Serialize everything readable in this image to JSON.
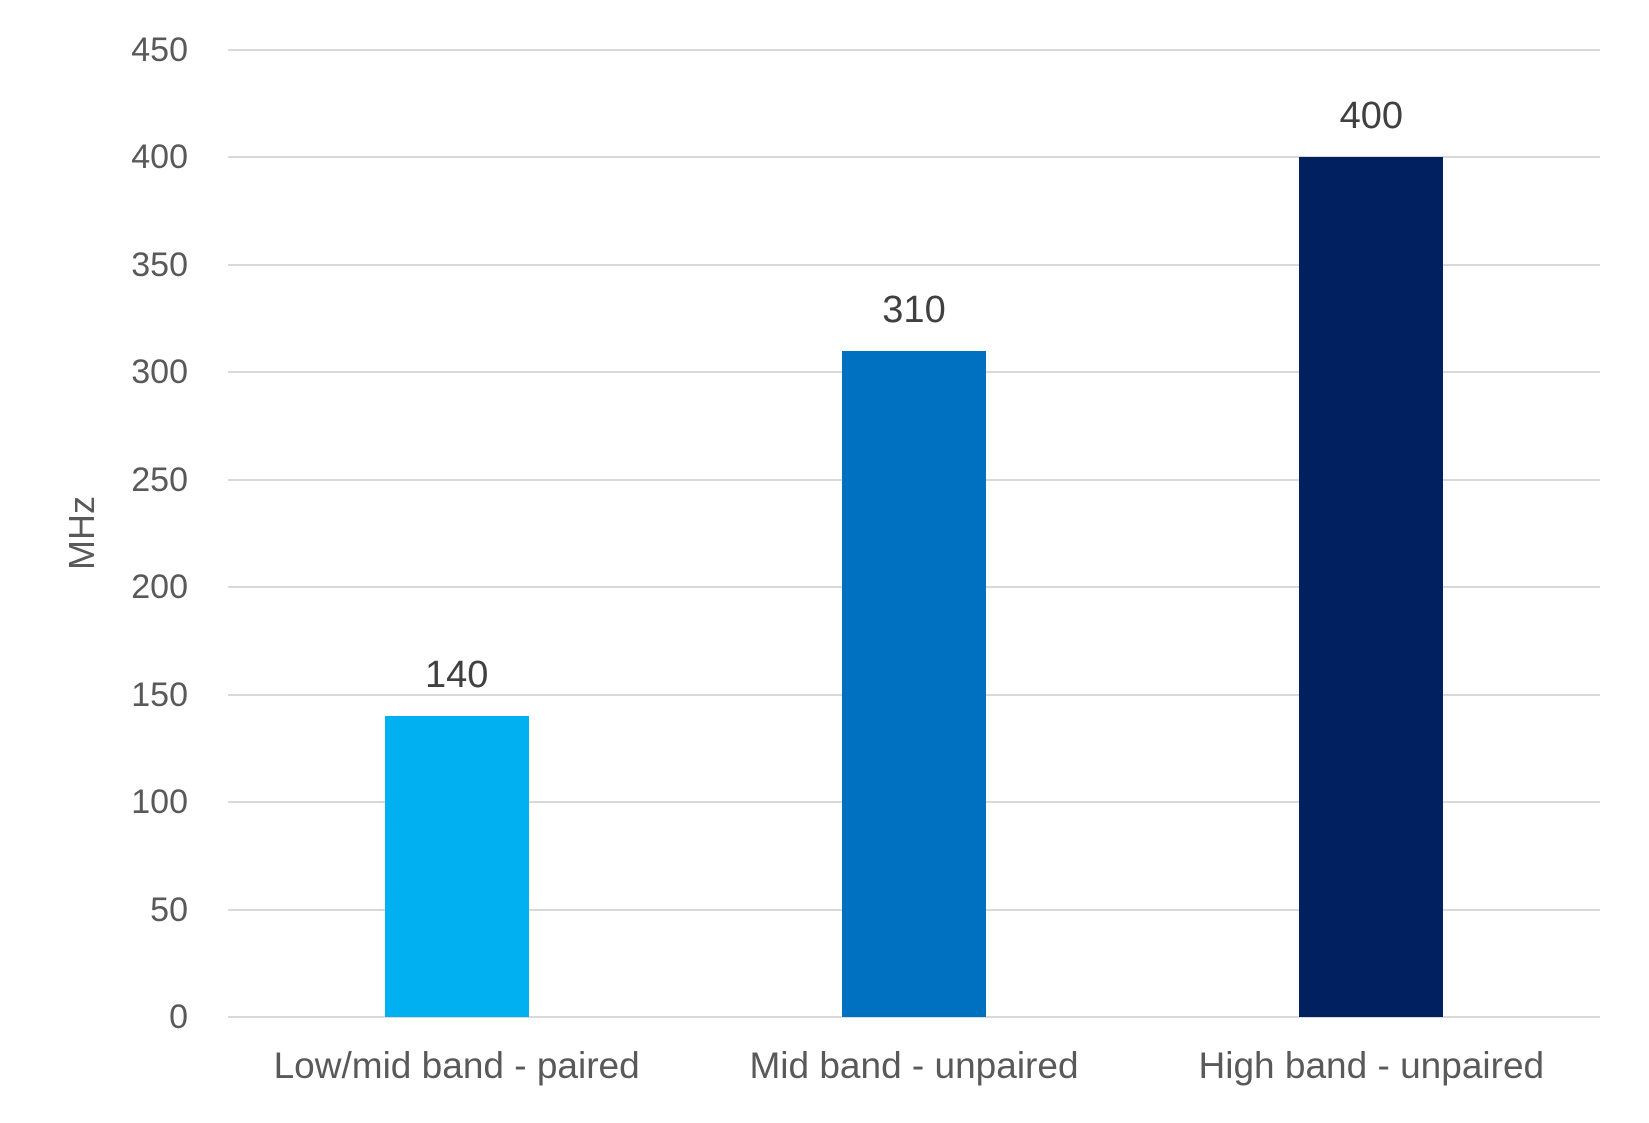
{
  "chart_data": {
    "type": "bar",
    "title": "",
    "categories": [
      "Low/mid band - paired",
      "Mid band - unpaired",
      "High band - unpaired"
    ],
    "values": [
      140,
      310,
      400
    ],
    "data_labels": [
      "140",
      "310",
      "400"
    ],
    "bar_colors": [
      "#00B0F0",
      "#0070C0",
      "#002060"
    ],
    "xlabel": "",
    "ylabel": "MHz",
    "ylim": [
      0,
      450
    ],
    "ytick_interval": 50,
    "yticks": [
      0,
      50,
      100,
      150,
      200,
      250,
      300,
      350,
      400,
      450
    ],
    "grid": "horizontal",
    "legend_position": "none",
    "colors": {
      "gridline": "#d9d9d9",
      "tick_label": "#595959",
      "category_label": "#595959",
      "data_label": "#404040",
      "background": "#ffffff"
    }
  }
}
